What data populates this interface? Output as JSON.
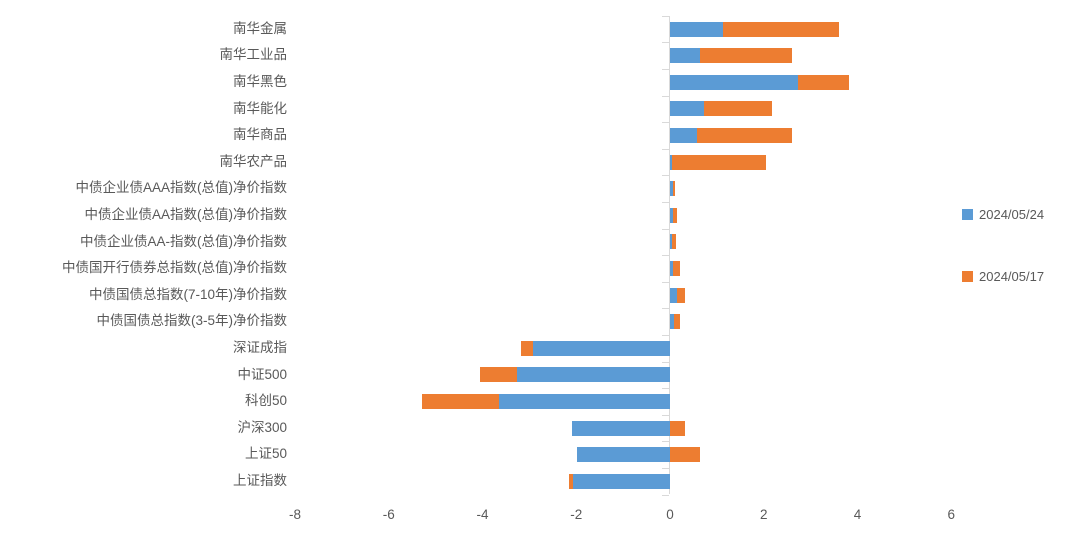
{
  "chart_data": {
    "type": "bar",
    "orientation": "horizontal",
    "stacked": true,
    "title": "",
    "xlabel": "",
    "ylabel": "",
    "grid": false,
    "legend_position": "right",
    "x_ticks": [
      -8,
      -6,
      -4,
      -2,
      0,
      2,
      4,
      6
    ],
    "xlim": [
      -8.7,
      6.6
    ],
    "categories": [
      "南华金属",
      "南华工业品",
      "南华黑色",
      "南华能化",
      "南华商品",
      "南华农产品",
      "中债企业债AAA指数(总值)净价指数",
      "中债企业债AA指数(总值)净价指数",
      "中债企业债AA-指数(总值)净价指数",
      "中债国开行债券总指数(总值)净价指数",
      "中债国债总指数(7-10年)净价指数",
      "中债国债总指数(3-5年)净价指数",
      "深证成指",
      "中证500",
      "科创50",
      "沪深300",
      "上证50",
      "上证指数"
    ],
    "series": [
      {
        "name": "2024/05/24",
        "color": "#5B9BD5",
        "values": [
          1.12,
          0.65,
          2.72,
          0.73,
          0.58,
          0.04,
          0.06,
          0.06,
          0.04,
          0.07,
          0.15,
          0.09,
          -2.92,
          -3.27,
          -3.64,
          -2.1,
          -1.99,
          -2.06
        ]
      },
      {
        "name": "2024/05/17",
        "color": "#ED7D31",
        "values": [
          2.48,
          1.96,
          1.09,
          1.44,
          2.02,
          2.0,
          0.05,
          0.09,
          0.08,
          0.14,
          0.16,
          0.13,
          -0.26,
          -0.78,
          -1.66,
          0.32,
          0.63,
          -0.09
        ]
      }
    ]
  },
  "legend": {
    "items": [
      {
        "label": "2024/05/24",
        "color": "#5B9BD5"
      },
      {
        "label": "2024/05/17",
        "color": "#ED7D31"
      }
    ]
  },
  "colors": {
    "axis": "#D9D9D9",
    "text": "#595959",
    "background": "#FFFFFF"
  }
}
